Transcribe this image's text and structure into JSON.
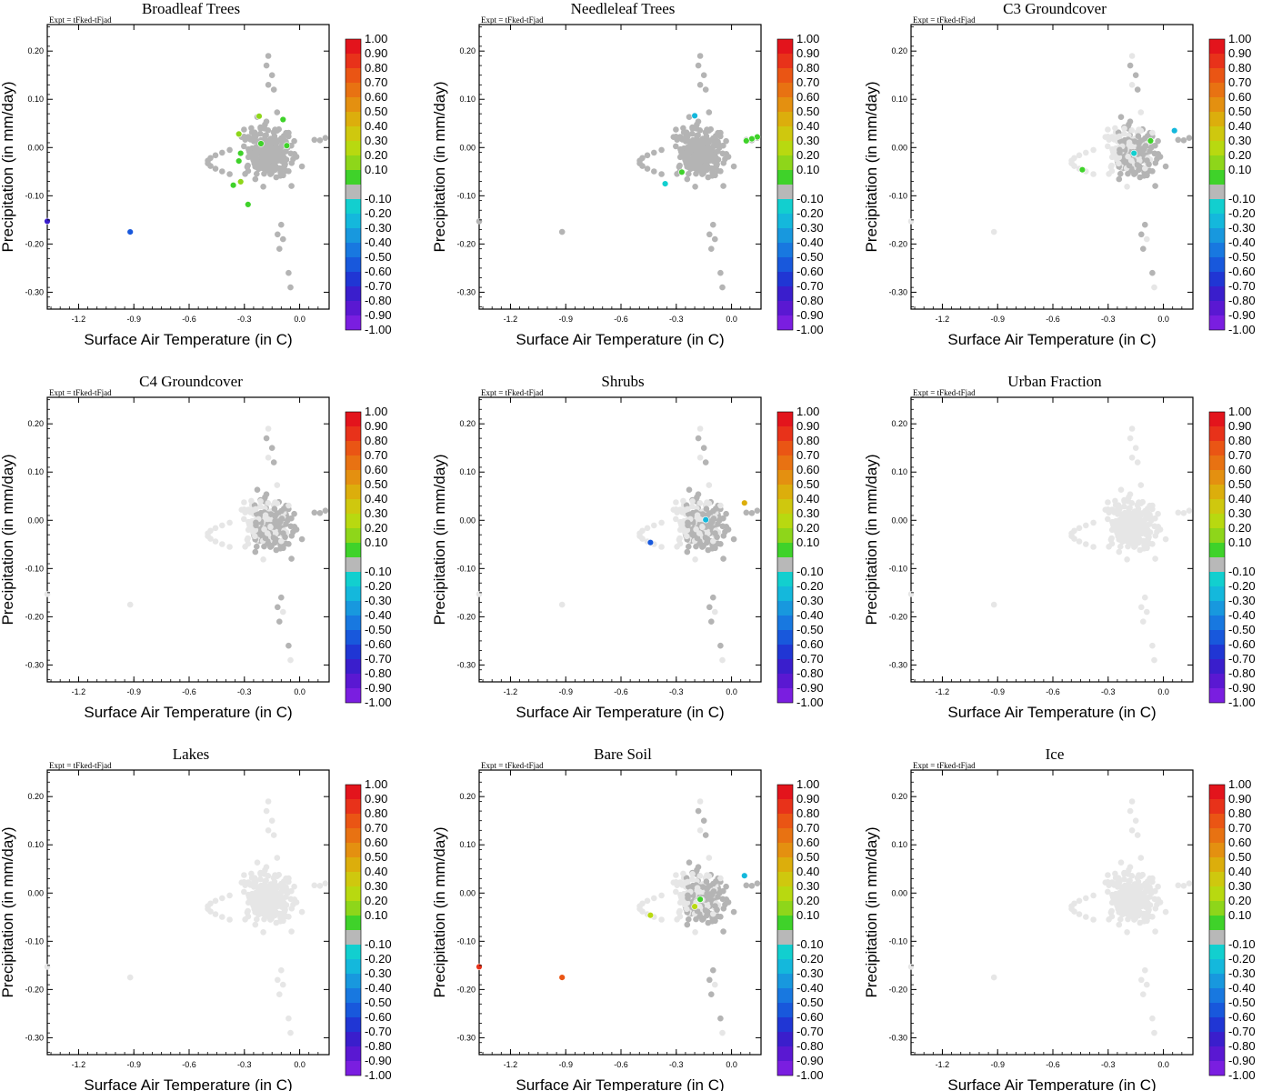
{
  "figure": {
    "expt_label": "Expt = tFked-tFjad",
    "xlabel": "Surface Air Temperature (in C)",
    "ylabel": "Precipitation (in mm/day)",
    "x_ticks": [
      "-1.2",
      "-0.9",
      "-0.6",
      "-0.3",
      "0.0"
    ],
    "x_tick_values": [
      -1.2,
      -0.9,
      -0.6,
      -0.3,
      0.0
    ],
    "y_ticks": [
      "0.20",
      "0.10",
      "0.00",
      "-0.10",
      "-0.20",
      "-0.30"
    ],
    "y_tick_values": [
      0.2,
      0.1,
      0.0,
      -0.1,
      -0.2,
      -0.3
    ],
    "xlim": [
      -1.37,
      0.16
    ],
    "ylim": [
      -0.335,
      0.255
    ],
    "colorbar_labels": [
      "1.00",
      "0.90",
      "0.80",
      "0.70",
      "0.60",
      "0.50",
      "0.40",
      "0.30",
      "0.20",
      "0.10",
      "-0.10",
      "-0.20",
      "-0.30",
      "-0.40",
      "-0.50",
      "-0.60",
      "-0.70",
      "-0.80",
      "-0.90",
      "-1.00"
    ],
    "colorbar_colors": [
      "#e3141c",
      "#e8321a",
      "#ea5514",
      "#e87212",
      "#e49010",
      "#dcae0c",
      "#cfc80e",
      "#b8d910",
      "#8ed61a",
      "#3fd22a",
      "#b8b8b8",
      "#12cfcf",
      "#14b8dc",
      "#1898de",
      "#1878e0",
      "#1858dc",
      "#2036d4",
      "#3a1ecc",
      "#5a18d2",
      "#7a1ee0"
    ],
    "background_point_color": "#e6e6e6",
    "neutral_point_color": "#b4b4b4"
  },
  "chart_data": [
    {
      "type": "scatter",
      "title": "Broadleaf Trees",
      "xlabel": "Surface Air Temperature (in C)",
      "ylabel": "Precipitation (in mm/day)",
      "xlim": [
        -1.37,
        0.16
      ],
      "ylim": [
        -0.335,
        0.255
      ],
      "background": "neutral-grey",
      "color_scale": "-1.00 to 1.00",
      "highlight_points": [
        {
          "x": -0.22,
          "y": 0.065,
          "value": 0.2
        },
        {
          "x": -0.09,
          "y": 0.058,
          "value": 0.1
        },
        {
          "x": -0.33,
          "y": 0.028,
          "value": 0.2
        },
        {
          "x": -0.21,
          "y": 0.008,
          "value": 0.1
        },
        {
          "x": -0.07,
          "y": 0.004,
          "value": 0.1
        },
        {
          "x": -0.32,
          "y": -0.012,
          "value": 0.1
        },
        {
          "x": -0.33,
          "y": -0.028,
          "value": 0.1
        },
        {
          "x": -0.36,
          "y": -0.078,
          "value": 0.1
        },
        {
          "x": -0.32,
          "y": -0.071,
          "value": 0.2
        },
        {
          "x": -0.28,
          "y": -0.118,
          "value": 0.1
        },
        {
          "x": -1.37,
          "y": -0.153,
          "value": -0.8
        },
        {
          "x": -0.92,
          "y": -0.175,
          "value": -0.6
        }
      ]
    },
    {
      "type": "scatter",
      "title": "Needleleaf Trees",
      "xlabel": "Surface Air Temperature (in C)",
      "ylabel": "Precipitation (in mm/day)",
      "xlim": [
        -1.37,
        0.16
      ],
      "ylim": [
        -0.335,
        0.255
      ],
      "background": "neutral-grey",
      "color_scale": "-1.00 to 1.00",
      "highlight_points": [
        {
          "x": -0.2,
          "y": 0.066,
          "value": -0.3
        },
        {
          "x": 0.14,
          "y": 0.022,
          "value": 0.1
        },
        {
          "x": 0.11,
          "y": 0.018,
          "value": 0.1
        },
        {
          "x": 0.08,
          "y": 0.014,
          "value": 0.1
        },
        {
          "x": -0.27,
          "y": -0.051,
          "value": 0.1
        },
        {
          "x": -0.36,
          "y": -0.075,
          "value": -0.2
        }
      ]
    },
    {
      "type": "scatter",
      "title": "C3 Groundcover",
      "xlabel": "Surface Air Temperature (in C)",
      "ylabel": "Precipitation (in mm/day)",
      "xlim": [
        -1.37,
        0.16
      ],
      "ylim": [
        -0.335,
        0.255
      ],
      "background": "mixed",
      "color_scale": "-1.00 to 1.00",
      "highlight_points": [
        {
          "x": 0.06,
          "y": 0.035,
          "value": -0.3
        },
        {
          "x": -0.07,
          "y": 0.014,
          "value": 0.1
        },
        {
          "x": -0.44,
          "y": -0.046,
          "value": 0.1
        },
        {
          "x": -0.16,
          "y": -0.012,
          "value": -0.2
        }
      ]
    },
    {
      "type": "scatter",
      "title": "C4 Groundcover",
      "xlabel": "Surface Air Temperature (in C)",
      "ylabel": "Precipitation (in mm/day)",
      "xlim": [
        -1.37,
        0.16
      ],
      "ylim": [
        -0.335,
        0.255
      ],
      "background": "mixed",
      "color_scale": "-1.00 to 1.00",
      "highlight_points": []
    },
    {
      "type": "scatter",
      "title": "Shrubs",
      "xlabel": "Surface Air Temperature (in C)",
      "ylabel": "Precipitation (in mm/day)",
      "xlim": [
        -1.37,
        0.16
      ],
      "ylim": [
        -0.335,
        0.255
      ],
      "background": "mixed",
      "color_scale": "-1.00 to 1.00",
      "highlight_points": [
        {
          "x": 0.07,
          "y": 0.036,
          "value": 0.5
        },
        {
          "x": -0.14,
          "y": 0.001,
          "value": -0.3
        },
        {
          "x": -0.44,
          "y": -0.046,
          "value": -0.6
        }
      ]
    },
    {
      "type": "scatter",
      "title": "Urban Fraction",
      "xlabel": "Surface Air Temperature (in C)",
      "ylabel": "Precipitation (in mm/day)",
      "xlim": [
        -1.37,
        0.16
      ],
      "ylim": [
        -0.335,
        0.255
      ],
      "background": "light-grey",
      "color_scale": "-1.00 to 1.00",
      "highlight_points": []
    },
    {
      "type": "scatter",
      "title": "Lakes",
      "xlabel": "Surface Air Temperature (in C)",
      "ylabel": "Precipitation (in mm/day)",
      "xlim": [
        -1.37,
        0.16
      ],
      "ylim": [
        -0.335,
        0.255
      ],
      "background": "light-grey",
      "color_scale": "-1.00 to 1.00",
      "highlight_points": []
    },
    {
      "type": "scatter",
      "title": "Bare Soil",
      "xlabel": "Surface Air Temperature (in C)",
      "ylabel": "Precipitation (in mm/day)",
      "xlim": [
        -1.37,
        0.16
      ],
      "ylim": [
        -0.335,
        0.255
      ],
      "background": "mixed",
      "color_scale": "-1.00 to 1.00",
      "highlight_points": [
        {
          "x": 0.07,
          "y": 0.036,
          "value": -0.3
        },
        {
          "x": -0.17,
          "y": -0.013,
          "value": 0.1
        },
        {
          "x": -0.2,
          "y": -0.028,
          "value": 0.3
        },
        {
          "x": -0.44,
          "y": -0.046,
          "value": 0.3
        },
        {
          "x": -1.37,
          "y": -0.153,
          "value": 0.9
        },
        {
          "x": -0.92,
          "y": -0.175,
          "value": 0.8
        }
      ]
    },
    {
      "type": "scatter",
      "title": "Ice",
      "xlabel": "Surface Air Temperature (in C)",
      "ylabel": "Precipitation (in mm/day)",
      "xlim": [
        -1.37,
        0.16
      ],
      "ylim": [
        -0.335,
        0.255
      ],
      "background": "light-grey",
      "color_scale": "-1.00 to 1.00",
      "highlight_points": []
    }
  ]
}
